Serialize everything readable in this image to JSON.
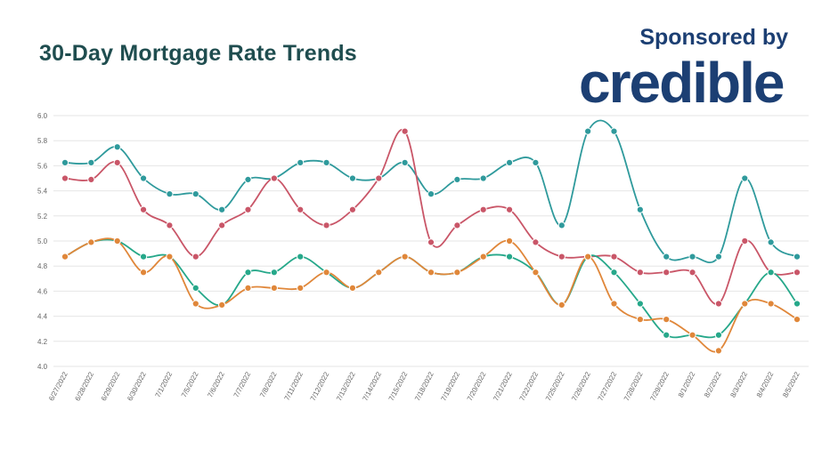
{
  "header": {
    "title": "30-Day Mortgage Rate Trends",
    "sponsor_text": "Sponsored by",
    "logo_text": "credible"
  },
  "colors": {
    "title": "#1f4d4f",
    "logo": "#1c3f73",
    "grid": "#e6e6e6"
  },
  "chart_data": {
    "type": "line",
    "title": "30-Day Mortgage Rate Trends",
    "xlabel": "",
    "ylabel": "",
    "ylim": [
      4.0,
      6.0
    ],
    "yticks": [
      "4.0",
      "4.2",
      "4.4",
      "4.6",
      "4.8",
      "5.0",
      "5.2",
      "5.4",
      "5.6",
      "5.8",
      "6.0"
    ],
    "grid": true,
    "legend": "none",
    "curve": "smooth",
    "categories": [
      "6/27/2022",
      "6/28/2022",
      "6/29/2022",
      "6/30/2022",
      "7/1/2022",
      "7/5/2022",
      "7/6/2022",
      "7/7/2022",
      "7/8/2022",
      "7/11/2022",
      "7/12/2022",
      "7/13/2022",
      "7/14/2022",
      "7/15/2022",
      "7/18/2022",
      "7/19/2022",
      "7/20/2022",
      "7/21/2022",
      "7/22/2022",
      "7/25/2022",
      "7/26/2022",
      "7/27/2022",
      "7/28/2022",
      "7/29/2022",
      "8/1/2022",
      "8/2/2022",
      "8/3/2022",
      "8/4/2022",
      "8/5/2022"
    ],
    "series": [
      {
        "color": "#2f9a9c",
        "values": [
          5.625,
          5.625,
          5.75,
          5.5,
          5.375,
          5.375,
          5.25,
          5.49,
          5.5,
          5.625,
          5.625,
          5.5,
          5.5,
          5.625,
          5.375,
          5.49,
          5.5,
          5.625,
          5.625,
          5.125,
          5.875,
          5.875,
          5.25,
          4.875,
          4.875,
          4.875,
          5.5,
          4.99,
          4.875
        ]
      },
      {
        "color": "#c95668",
        "values": [
          5.5,
          5.49,
          5.625,
          5.25,
          5.125,
          4.875,
          5.125,
          5.25,
          5.5,
          5.25,
          5.125,
          5.25,
          5.5,
          5.875,
          4.99,
          5.125,
          5.25,
          5.25,
          4.99,
          4.875,
          4.875,
          4.875,
          4.75,
          4.75,
          4.75,
          4.5,
          5.0,
          4.75,
          4.75
        ]
      },
      {
        "color": "#26a88a",
        "values": [
          4.875,
          4.99,
          5.0,
          4.875,
          4.875,
          4.625,
          4.49,
          4.75,
          4.75,
          4.875,
          4.75,
          4.625,
          4.75,
          4.875,
          4.75,
          4.75,
          4.875,
          4.875,
          4.75,
          4.49,
          4.875,
          4.75,
          4.5,
          4.25,
          4.25,
          4.25,
          4.5,
          4.75,
          4.5
        ]
      },
      {
        "color": "#e0873a",
        "values": [
          4.875,
          4.99,
          5.0,
          4.75,
          4.875,
          4.5,
          4.49,
          4.625,
          4.625,
          4.625,
          4.75,
          4.625,
          4.75,
          4.875,
          4.75,
          4.75,
          4.875,
          5.0,
          4.75,
          4.49,
          4.875,
          4.5,
          4.375,
          4.375,
          4.25,
          4.125,
          4.5,
          4.5,
          4.375
        ]
      }
    ]
  }
}
